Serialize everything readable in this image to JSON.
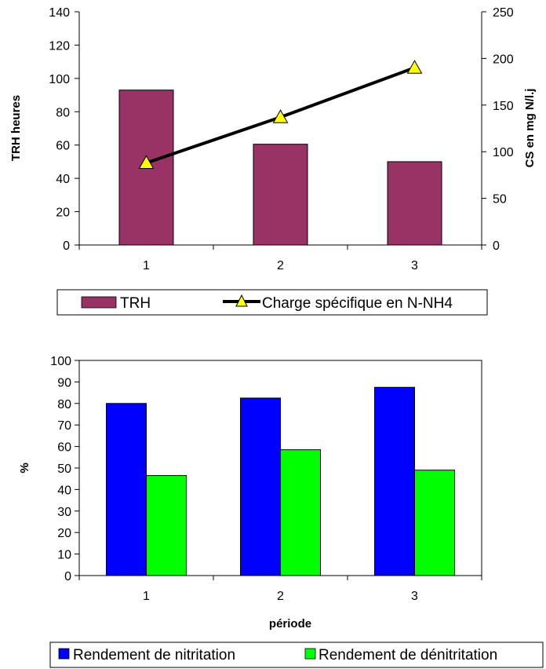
{
  "chart_data": [
    {
      "type": "bar+line",
      "categories": [
        "1",
        "2",
        "3"
      ],
      "ylabel": "TRH heures",
      "y2label": "CS en mg N/l.j",
      "ylim": [
        0,
        140
      ],
      "y2lim": [
        0,
        250
      ],
      "yticks": [
        "0",
        "20",
        "40",
        "60",
        "80",
        "100",
        "120",
        "140"
      ],
      "y2ticks": [
        "0",
        "50",
        "100",
        "150",
        "200",
        "250"
      ],
      "grid": false,
      "legend_position": "bottom",
      "series": [
        {
          "name": "TRH",
          "type": "bar",
          "axis": "left",
          "color": "#993366",
          "values": [
            93,
            60.5,
            50
          ]
        },
        {
          "name": "Charge spécifique en N-NH4",
          "type": "line",
          "axis": "right",
          "color": "#000000",
          "marker": "triangle",
          "marker_color": "#ffff00",
          "values": [
            88,
            137,
            190
          ]
        }
      ]
    },
    {
      "type": "bar",
      "categories": [
        "1",
        "2",
        "3"
      ],
      "xlabel": "période",
      "ylabel": "%",
      "ylim": [
        0,
        100
      ],
      "yticks": [
        "0",
        "10",
        "20",
        "30",
        "40",
        "50",
        "60",
        "70",
        "80",
        "90",
        "100"
      ],
      "grid": false,
      "legend_position": "bottom",
      "series": [
        {
          "name": "Rendement de nitritation",
          "color": "#0000ff",
          "values": [
            80,
            82.5,
            87.5
          ]
        },
        {
          "name": "Rendement de dénitritation",
          "color": "#00ff00",
          "values": [
            46.5,
            58.5,
            49
          ]
        }
      ]
    }
  ]
}
